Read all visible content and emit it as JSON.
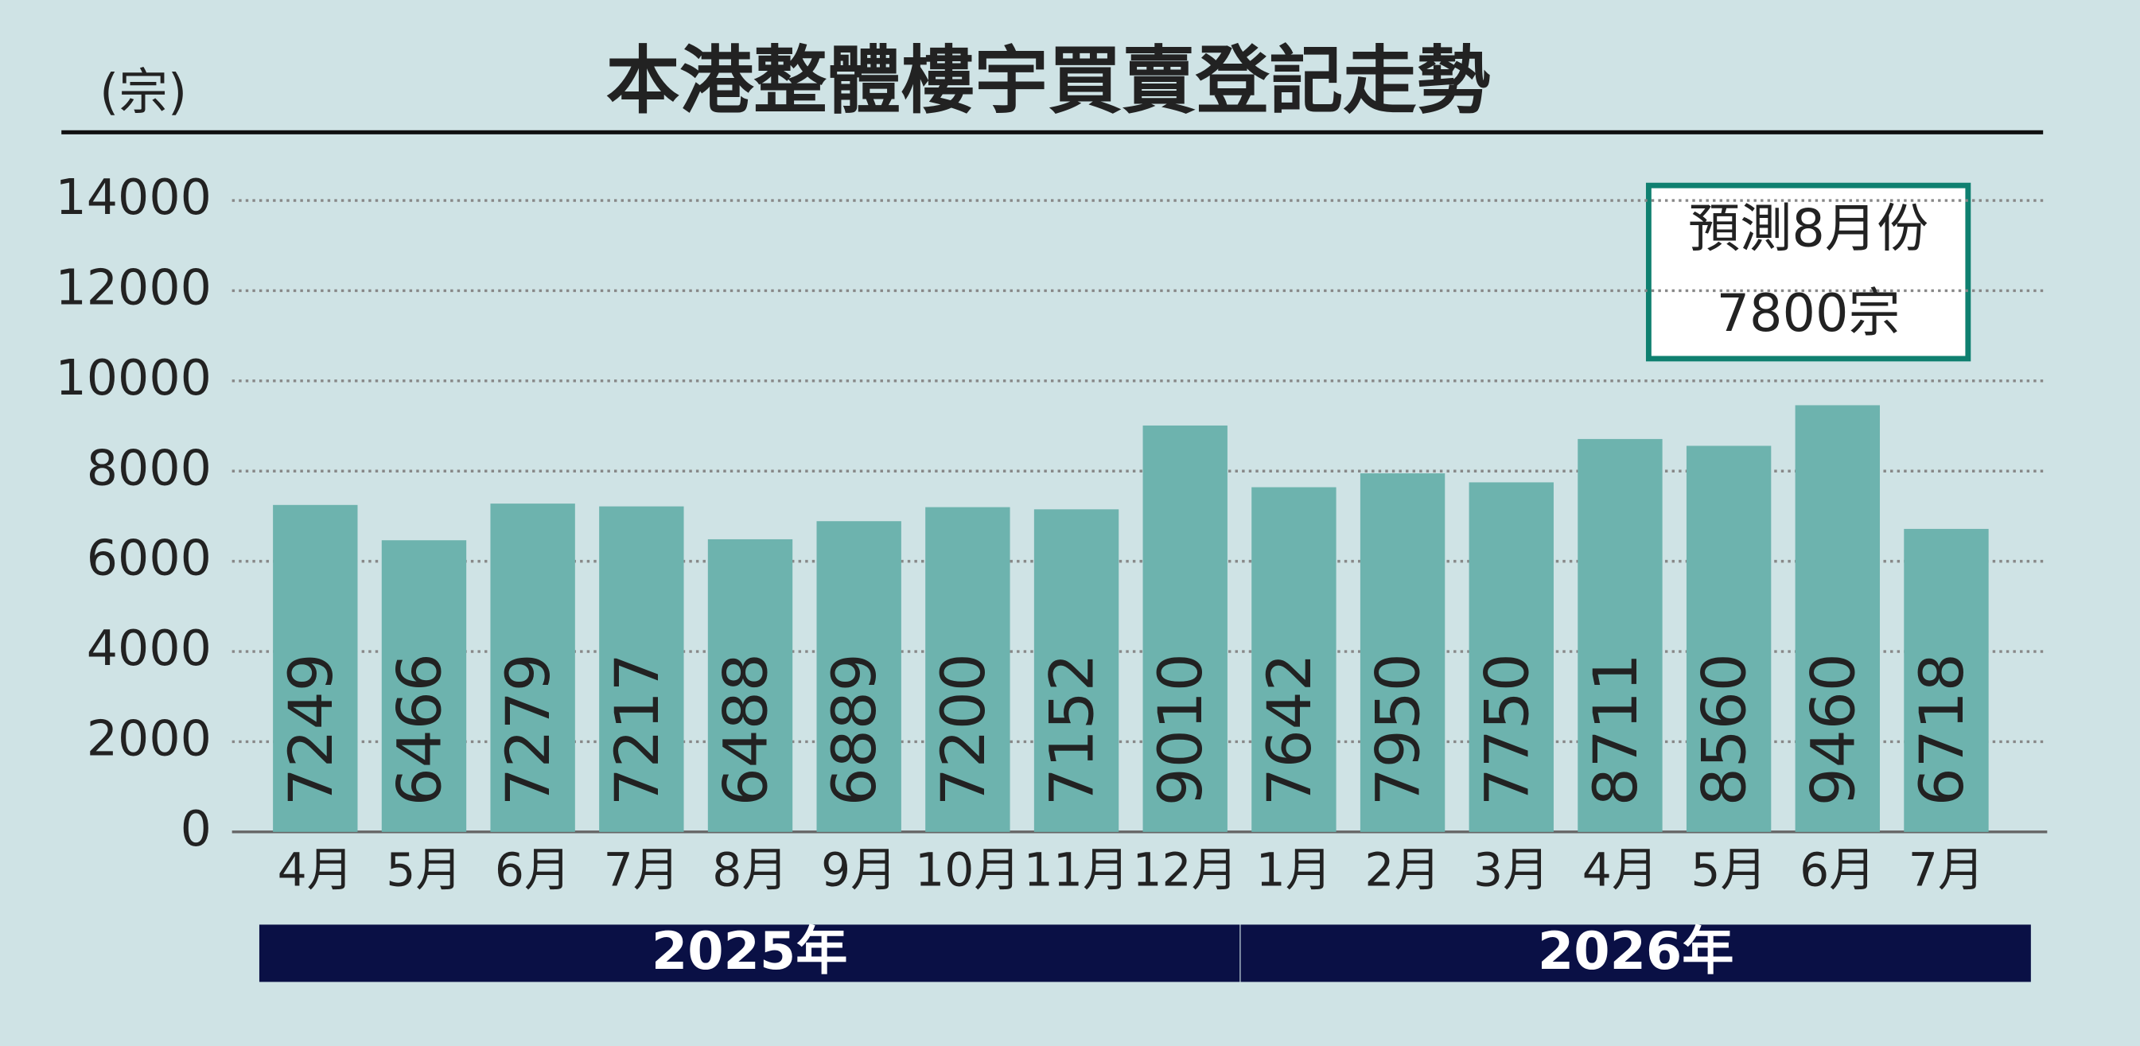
{
  "chart_data": {
    "type": "bar",
    "title": "本港整體樓宇買賣登記走勢",
    "y_unit": "(宗)",
    "groups": [
      {
        "label": "2025年",
        "categories": [
          "4月",
          "5月",
          "6月",
          "7月",
          "8月",
          "9月",
          "10月",
          "11月",
          "12月"
        ]
      },
      {
        "label": "2026年",
        "categories": [
          "1月",
          "2月",
          "3月",
          "4月",
          "5月",
          "6月",
          "7月"
        ]
      }
    ],
    "values": [
      7249,
      6466,
      7279,
      7217,
      6488,
      6889,
      7200,
      7152,
      9010,
      7642,
      7950,
      7750,
      8711,
      8560,
      9460,
      6718
    ],
    "color": "#6db3ae",
    "ylim": [
      0,
      14000
    ],
    "yticks": [
      0,
      2000,
      4000,
      6000,
      8000,
      10000,
      12000,
      14000
    ],
    "grid": true,
    "annotation": [
      "預測8月份",
      "7800宗"
    ]
  }
}
